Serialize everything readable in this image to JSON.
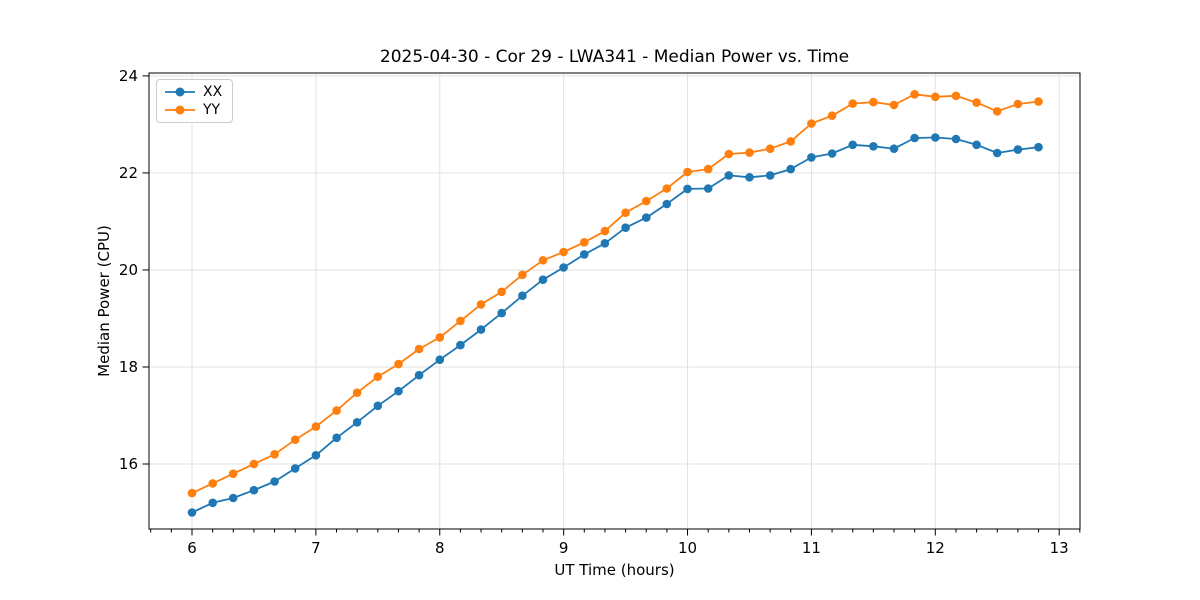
{
  "figure": {
    "title": "2025-04-30 - Cor 29 - LWA341 - Median Power vs. Time",
    "xlabel": "UT Time (hours)",
    "ylabel": "Median Power (CPU)"
  },
  "chart_data": {
    "type": "line",
    "title": "2025-04-30 - Cor 29 - LWA341 - Median Power vs. Time",
    "xlabel": "UT Time (hours)",
    "ylabel": "Median Power (CPU)",
    "marker": "o",
    "grid": true,
    "grid_color": "#e2e2e2",
    "spine_color": "#000000",
    "legend_position": "upper left",
    "xlim": [
      5.653,
      13.168
    ],
    "ylim": [
      14.66,
      24.06
    ],
    "xticks": [
      6,
      7,
      8,
      9,
      10,
      11,
      12,
      13
    ],
    "yticks": [
      16,
      18,
      20,
      22,
      24
    ],
    "x_minor_tick_step": 0.166667,
    "x": [
      6.0,
      6.167,
      6.333,
      6.5,
      6.667,
      6.833,
      7.0,
      7.167,
      7.333,
      7.5,
      7.667,
      7.833,
      8.0,
      8.167,
      8.333,
      8.5,
      8.667,
      8.833,
      9.0,
      9.167,
      9.333,
      9.5,
      9.667,
      9.833,
      10.0,
      10.167,
      10.333,
      10.5,
      10.667,
      10.833,
      11.0,
      11.167,
      11.333,
      11.5,
      11.667,
      11.833,
      12.0,
      12.167,
      12.333,
      12.5,
      12.667,
      12.833
    ],
    "series": [
      {
        "name": "XX",
        "color": "#1f77b4",
        "values": [
          15.0,
          15.2,
          15.3,
          15.46,
          15.64,
          15.91,
          16.18,
          16.54,
          16.86,
          17.2,
          17.5,
          17.83,
          18.15,
          18.45,
          18.77,
          19.11,
          19.47,
          19.8,
          20.05,
          20.32,
          20.55,
          20.87,
          21.08,
          21.36,
          21.67,
          21.68,
          21.95,
          21.91,
          21.95,
          22.08,
          22.32,
          22.4,
          22.58,
          22.55,
          22.5,
          22.72,
          22.73,
          22.7,
          22.58,
          22.41,
          22.48,
          22.53
        ]
      },
      {
        "name": "YY",
        "color": "#ff7f0e",
        "values": [
          15.4,
          15.6,
          15.8,
          16.0,
          16.2,
          16.5,
          16.77,
          17.1,
          17.47,
          17.8,
          18.06,
          18.37,
          18.61,
          18.95,
          19.29,
          19.55,
          19.9,
          20.2,
          20.37,
          20.57,
          20.8,
          21.18,
          21.42,
          21.68,
          22.02,
          22.08,
          22.39,
          22.42,
          22.5,
          22.65,
          23.02,
          23.18,
          23.43,
          23.46,
          23.4,
          23.62,
          23.57,
          23.59,
          23.45,
          23.27,
          23.42,
          23.47
        ]
      }
    ]
  }
}
